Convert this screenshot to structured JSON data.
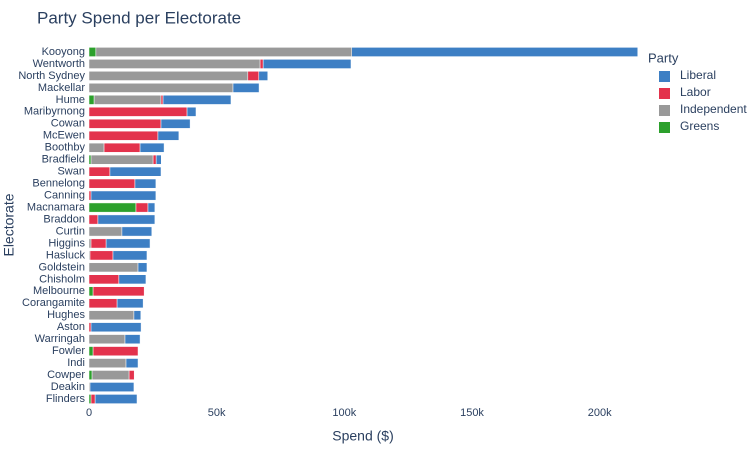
{
  "chart_data": {
    "type": "stacked-barh",
    "title": "Party Spend per Electorate",
    "x_label": "Spend ($)",
    "y_label": "Electorate",
    "legend_title": "Party",
    "legend_position": "right",
    "grid": false,
    "categories": [
      "Kooyong",
      "Wentworth",
      "North Sydney",
      "Mackellar",
      "Hume",
      "Maribyrnong",
      "Cowan",
      "McEwen",
      "Boothby",
      "Bradfield",
      "Swan",
      "Bennelong",
      "Canning",
      "Macnamara",
      "Braddon",
      "Curtin",
      "Higgins",
      "Hasluck",
      "Goldstein",
      "Chisholm",
      "Melbourne",
      "Corangamite",
      "Hughes",
      "Aston",
      "Warringah",
      "Fowler",
      "Indi",
      "Cowper",
      "Deakin",
      "Flinders"
    ],
    "series": [
      {
        "name": "Liberal",
        "color": "#3d7fc4",
        "values": [
          112000,
          34400,
          3500,
          10200,
          26600,
          3500,
          11400,
          8200,
          9400,
          2000,
          20000,
          8200,
          25400,
          2700,
          22300,
          11700,
          17200,
          13300,
          3500,
          10600,
          0,
          10200,
          2700,
          19600,
          5900,
          0,
          4700,
          0,
          17200,
          16400
        ]
      },
      {
        "name": "Labor",
        "color": "#e3324c",
        "values": [
          0,
          1200,
          4300,
          0,
          800,
          38400,
          28200,
          27000,
          14100,
          1200,
          8200,
          18000,
          800,
          4700,
          3500,
          0,
          5900,
          9000,
          0,
          11700,
          20000,
          11000,
          0,
          800,
          0,
          17600,
          0,
          2000,
          0,
          1600
        ]
      },
      {
        "name": "Independent",
        "color": "#999999",
        "values": [
          100200,
          67000,
          62200,
          56400,
          26200,
          0,
          0,
          0,
          5900,
          24300,
          0,
          0,
          0,
          0,
          0,
          12900,
          800,
          400,
          19200,
          0,
          0,
          0,
          17600,
          0,
          14100,
          0,
          14500,
          14500,
          400,
          0
        ]
      },
      {
        "name": "Greens",
        "color": "#2ca02c",
        "values": [
          2700,
          0,
          0,
          0,
          2000,
          0,
          0,
          0,
          0,
          800,
          0,
          0,
          0,
          18400,
          0,
          0,
          0,
          0,
          0,
          0,
          1600,
          0,
          0,
          0,
          0,
          1600,
          0,
          1200,
          0,
          800
        ]
      }
    ],
    "xlim": [
      0,
      215000
    ],
    "xticks": [
      0,
      {
        "value": 50000,
        "label": "50k"
      },
      {
        "value": 100000,
        "label": "100k"
      },
      {
        "value": 150000,
        "label": "150k"
      },
      {
        "value": 200000,
        "label": "200k"
      }
    ]
  }
}
